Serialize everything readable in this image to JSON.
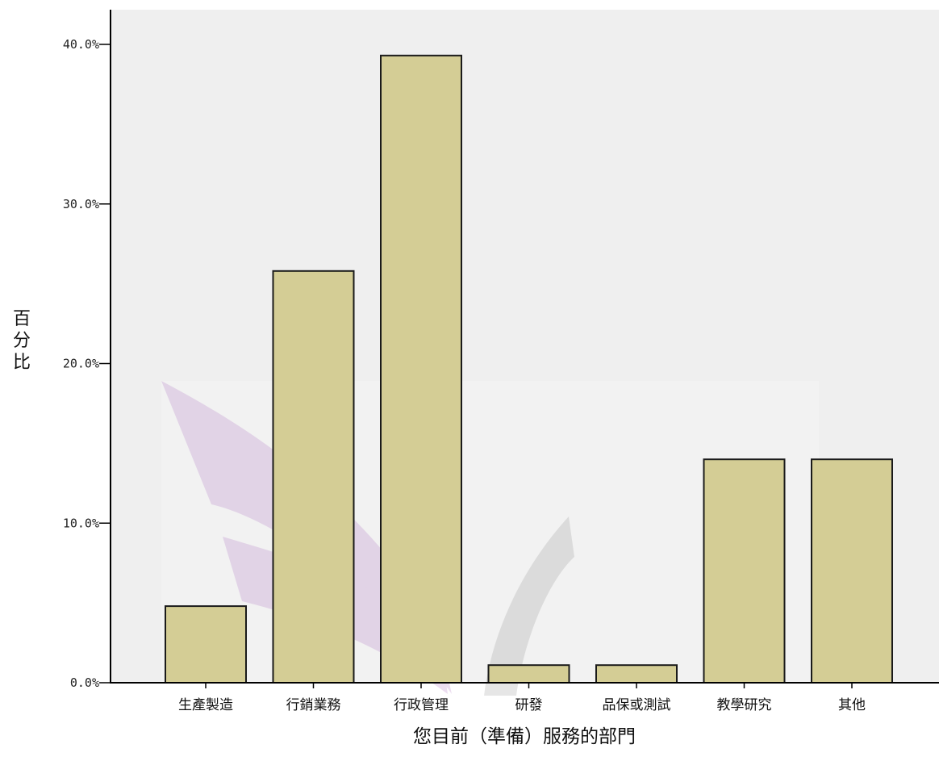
{
  "chart_data": {
    "type": "bar",
    "categories": [
      "生產製造",
      "行銷業務",
      "行政管理",
      "研發",
      "品保或測試",
      "教學研究",
      "其他"
    ],
    "values": [
      4.8,
      25.8,
      39.3,
      1.1,
      1.1,
      14.0,
      14.0
    ],
    "xlabel": "您目前（準備）服務的部門",
    "ylabel": "百分比",
    "ylim": [
      0,
      40
    ],
    "yticks": [
      "0.0%",
      "10.0%",
      "20.0%",
      "30.0%",
      "40.0%"
    ],
    "grid": false,
    "colors": {
      "plot_background": "#efefef",
      "bar_fill": "#d4cd95",
      "bar_stroke": "#1a1a1a",
      "axis": "#000000"
    }
  }
}
